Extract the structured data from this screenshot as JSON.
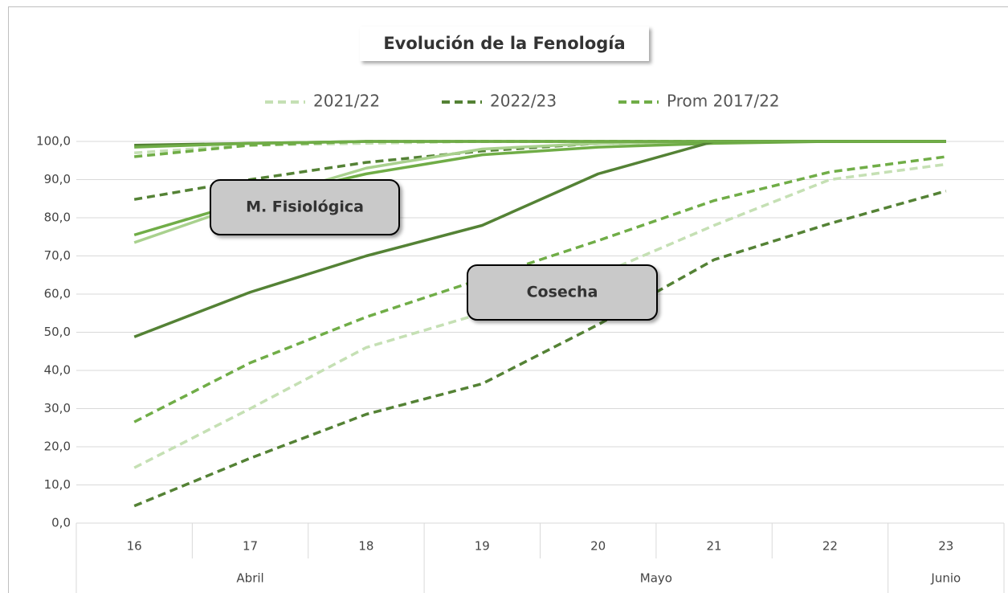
{
  "chart_data": {
    "type": "line",
    "title": "Evolución  de la Fenología",
    "categories": [
      "16",
      "17",
      "18",
      "19",
      "20",
      "21",
      "22",
      "23"
    ],
    "months": [
      "Abril",
      "Abril",
      "Abril",
      "Mayo",
      "Mayo",
      "Mayo",
      "Mayo",
      "Junio"
    ],
    "ylim": [
      0,
      100
    ],
    "yticks": [
      {
        "value": 0,
        "label": "0,0"
      },
      {
        "value": 10,
        "label": "10,0"
      },
      {
        "value": 20,
        "label": "20,0"
      },
      {
        "value": 30,
        "label": "30,0"
      },
      {
        "value": 40,
        "label": "40,0"
      },
      {
        "value": 50,
        "label": "50,0"
      },
      {
        "value": 60,
        "label": "60,0"
      },
      {
        "value": 70,
        "label": "70,0"
      },
      {
        "value": 80,
        "label": "80,0"
      },
      {
        "value": 90,
        "label": "90,0"
      },
      {
        "value": 100,
        "label": "100,0"
      }
    ],
    "grid": true,
    "legend": "top",
    "series": [
      {
        "name": "2021/22",
        "color": "#c5e0b4",
        "dashed": true,
        "values": [
          14.5,
          30,
          46,
          55,
          65,
          78,
          90,
          94
        ]
      },
      {
        "name": "2022/23",
        "color": "#548235",
        "dashed": true,
        "values": [
          4.5,
          17,
          28.5,
          36.5,
          52,
          69,
          78.5,
          87
        ]
      },
      {
        "name": "Prom 2017/22",
        "color": "#70ad47",
        "dashed": true,
        "values": [
          26.5,
          42,
          54,
          64,
          74,
          84.5,
          92,
          96
        ]
      },
      {
        "color": "#548235",
        "dashed": true,
        "values": [
          84.8,
          90,
          94.5,
          97.5,
          99.5,
          100,
          100,
          100
        ]
      },
      {
        "color": "#c5e0b4",
        "dashed": true,
        "values": [
          97,
          99,
          99.5,
          100,
          100,
          100,
          100,
          100
        ]
      },
      {
        "color": "#70ad47",
        "dashed": true,
        "values": [
          96,
          99,
          100,
          100,
          100,
          100,
          100,
          100
        ]
      },
      {
        "color": "#a9d18e",
        "dashed": false,
        "values": [
          73.5,
          84,
          93,
          98,
          99.5,
          100,
          100,
          100
        ]
      },
      {
        "color": "#70ad47",
        "dashed": false,
        "values": [
          75.5,
          84.5,
          91.5,
          96.5,
          98.5,
          99.5,
          100,
          100
        ]
      },
      {
        "color": "#548235",
        "dashed": false,
        "values": [
          48.8,
          60.5,
          70,
          78,
          91.5,
          100,
          100,
          100
        ]
      },
      {
        "color": "#548235",
        "dashed": false,
        "values": [
          99,
          99.5,
          100,
          100,
          100,
          100,
          100,
          100
        ]
      },
      {
        "color": "#70ad47",
        "dashed": false,
        "values": [
          98.5,
          99.5,
          100,
          100,
          100,
          100,
          100,
          100
        ]
      }
    ],
    "annotations": [
      "M. Fisiológica",
      "Cosecha"
    ]
  }
}
